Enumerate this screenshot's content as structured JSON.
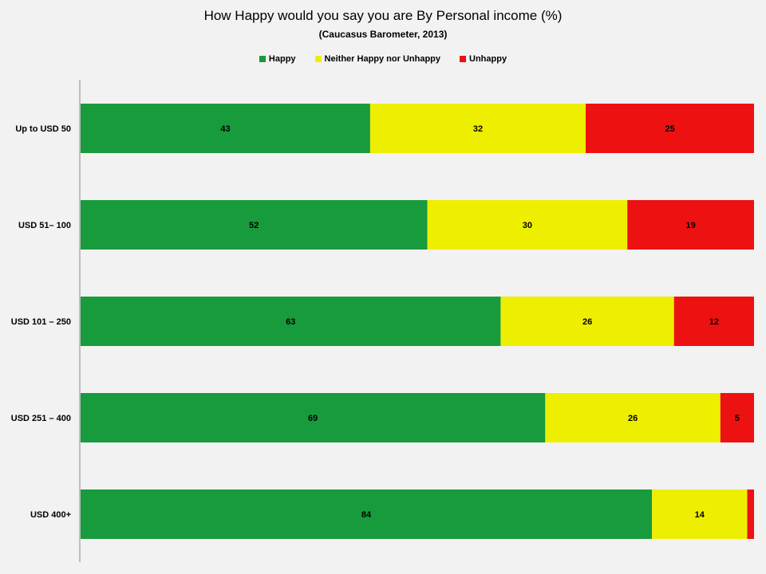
{
  "chart_data": {
    "type": "bar",
    "orientation": "horizontal",
    "stacked": true,
    "title": "How Happy would you say you are By Personal income (%)",
    "subtitle": "(Caucasus Barometer, 2013)",
    "categories": [
      "Up to USD 50",
      "USD 51– 100",
      "USD 101 – 250",
      "USD 251 – 400",
      "USD 400+"
    ],
    "series": [
      {
        "name": "Happy",
        "color": "#189b3c",
        "values": [
          43,
          52,
          63,
          69,
          84
        ]
      },
      {
        "name": "Neither Happy nor Unhappy",
        "color": "#eeee00",
        "values": [
          32,
          30,
          26,
          26,
          14
        ]
      },
      {
        "name": "Unhappy",
        "color": "#ee1111",
        "values": [
          25,
          19,
          12,
          5,
          1
        ]
      }
    ],
    "data_labels": [
      [
        "43",
        "32",
        "25"
      ],
      [
        "52",
        "30",
        "19"
      ],
      [
        "63",
        "26",
        "12"
      ],
      [
        "69",
        "26",
        "5"
      ],
      [
        "84",
        "14",
        ""
      ]
    ],
    "xlim": [
      0,
      100
    ],
    "legend_position": "top",
    "grid": false
  }
}
